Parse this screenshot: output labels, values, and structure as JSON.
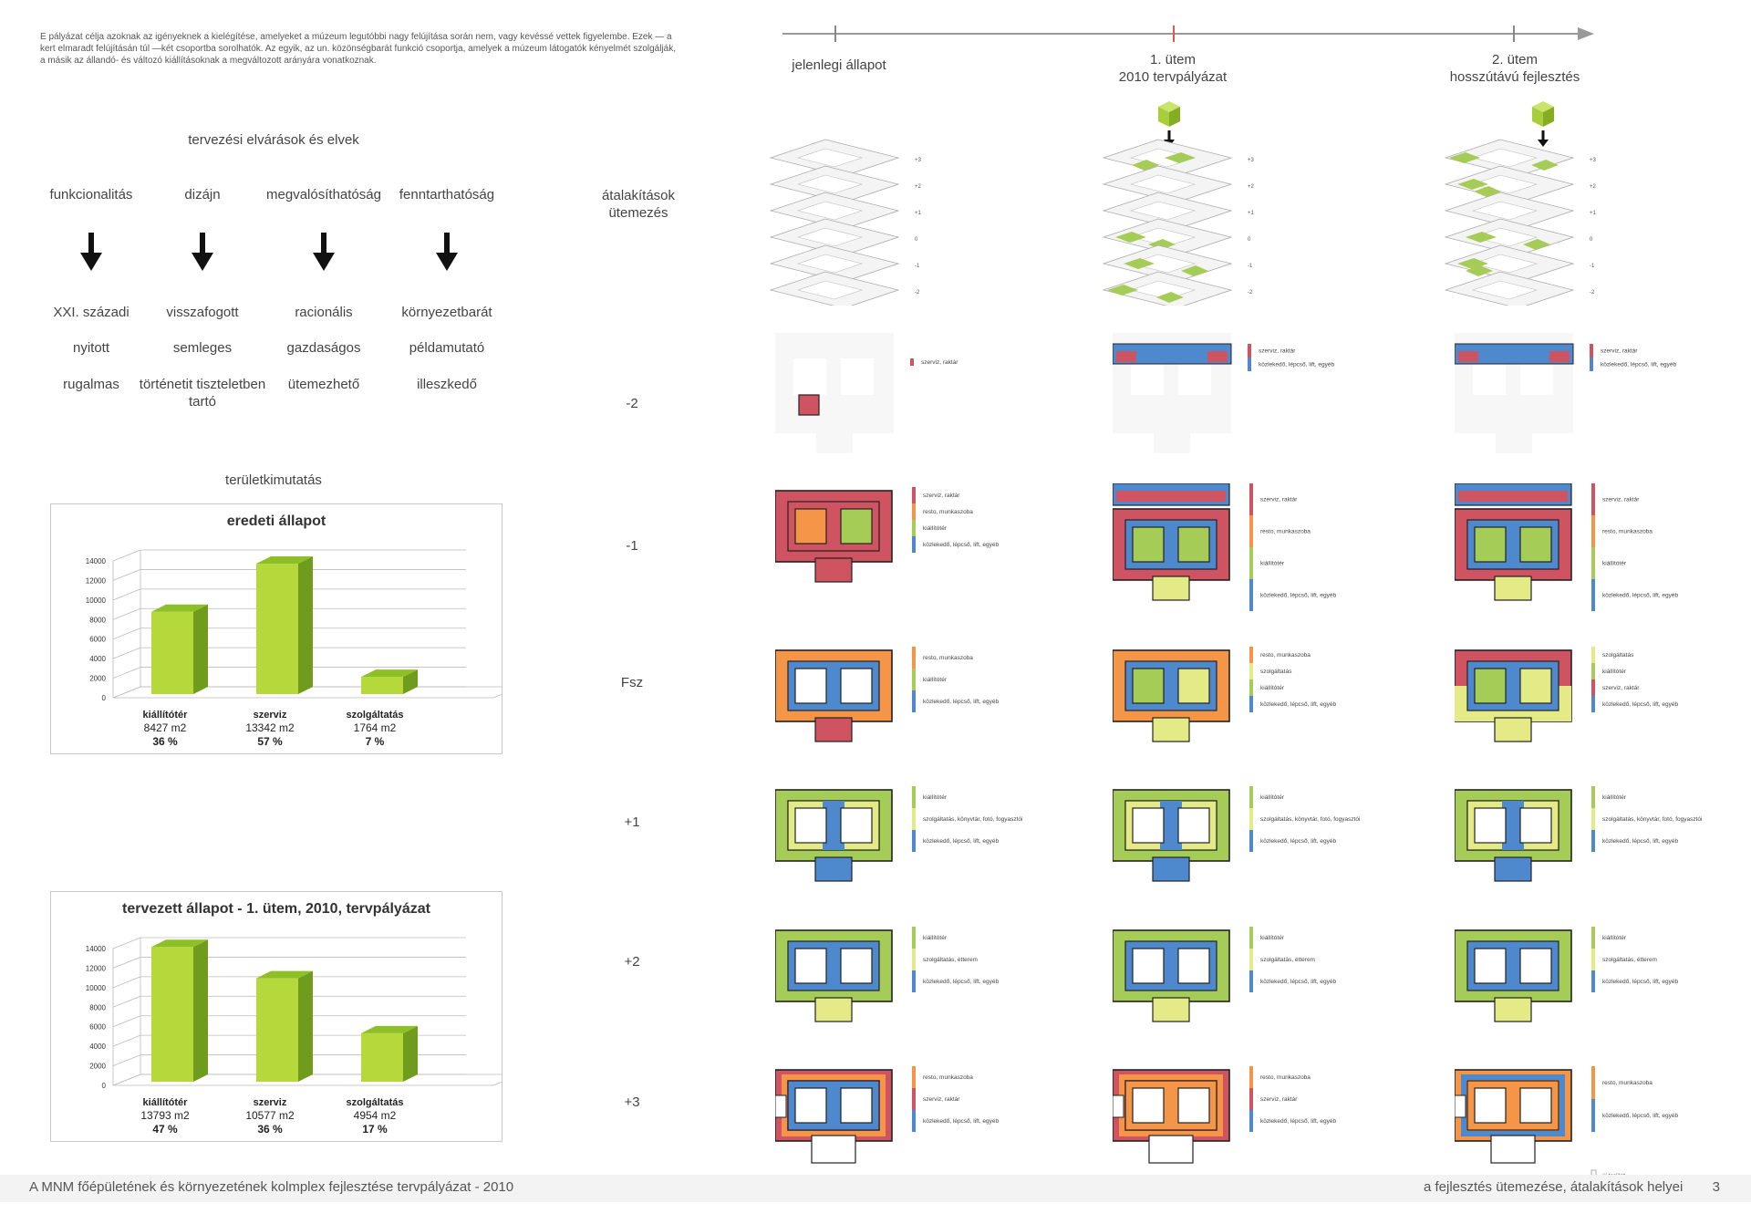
{
  "intro": "E pályázat célja azoknak az igényeknek a kielégítése, amelyeket a  múzeum legutóbbi nagy felújítása során nem, vagy kevéssé vettek figyelembe. Ezek — a kert elmaradt felújításán túl —két csoportba sorolhatók. Az egyik, az un. közönségbarát funkció csoportja, amelyek a múzeum látogatók kényelmét szolgálják, a másik az állandó- és változó kiállításoknak a megváltozott arányára vonatkoznak.",
  "principles": {
    "title": "tervezési elvárások és elvek",
    "columns": [
      {
        "label": "funkcionalitás",
        "values": [
          "XXI. századi",
          "nyitott",
          "rugalmas"
        ]
      },
      {
        "label": "dizájn",
        "values": [
          "visszafogott",
          "semleges",
          "történetit tiszteletben tartó"
        ]
      },
      {
        "label": "megvalósíthatóság",
        "values": [
          "racionális",
          "gazdaságos",
          "ütemezhető"
        ]
      },
      {
        "label": "fenntarthatóság",
        "values": [
          "környezetbarát",
          "példamutató",
          "illeszkedő"
        ]
      }
    ]
  },
  "area_title": "területkimutatás",
  "chart_data": [
    {
      "type": "bar",
      "title": "eredeti állapot",
      "categories": [
        "kiállítótér",
        "szerviz",
        "szolgáltatás"
      ],
      "values": [
        8427,
        13342,
        1764
      ],
      "value_labels": [
        "8427 m2",
        "13342 m2",
        "1764 m2"
      ],
      "percent_labels": [
        "36 %",
        "57 %",
        "7 %"
      ],
      "yticks": [
        0,
        2000,
        4000,
        6000,
        8000,
        10000,
        12000,
        14000
      ],
      "ylim": [
        0,
        14000
      ],
      "colors": {
        "front": "#b5d93b",
        "side": "#6f9c1c",
        "top": "#8fbf27"
      },
      "grid": true
    },
    {
      "type": "bar",
      "title": "tervezett állapot  - 1. ütem, 2010, tervpályázat",
      "categories": [
        "kiállítótér",
        "szerviz",
        "szolgáltatás"
      ],
      "values": [
        13793,
        10577,
        4954
      ],
      "value_labels": [
        "13793 m2",
        "10577 m2",
        "4954 m2"
      ],
      "percent_labels": [
        "47 %",
        "36 %",
        "17 %"
      ],
      "yticks": [
        0,
        2000,
        4000,
        6000,
        8000,
        10000,
        12000,
        14000
      ],
      "ylim": [
        0,
        14000
      ],
      "colors": {
        "front": "#b5d93b",
        "side": "#6f9c1c",
        "top": "#8fbf27"
      },
      "grid": true
    }
  ],
  "schedule_label": "átalakítások ütemezés",
  "timeline": {
    "stages": [
      {
        "line1": "jelenlegi állapot",
        "line2": ""
      },
      {
        "line1": "1. ütem",
        "line2": "2010 tervpályázat"
      },
      {
        "line1": "2. ütem",
        "line2": "hosszútávú fejlesztés"
      }
    ]
  },
  "iso_levels": [
    "+3",
    "+2",
    "+1",
    "0",
    "-1",
    "-2"
  ],
  "floors": [
    "-2",
    "-1",
    "Fsz",
    "+1",
    "+2",
    "+3"
  ],
  "legend_items": {
    "szerviz": "szerviz, raktár",
    "kozlekedo": "közlekedő, lépcső, lift, egyéb",
    "resto": "resto, munkaszoba",
    "kiallitoter": "kiállítótér",
    "szolgaltatas": "szolgáltatás",
    "szolg_konyv": "szolgáltatás, könyvtár, fotó, fogyasztói",
    "szolg_etterem": "szolgáltatás, étterem",
    "kozlekedo2": "közlekedő, lépcső, lift, egyéb",
    "uj_terulet": "új terület"
  },
  "colors": {
    "red": "#cf5360",
    "blue": "#4f89cd",
    "orange": "#f59548",
    "green": "#a6cc58",
    "lightgreen": "#e4ea86",
    "gray": "#ececec",
    "cube": "#a7cf3b"
  },
  "footer": {
    "left": "A MNM főépületének és környezetének kolmplex fejlesztése tervpályázat - 2010",
    "right": "a fejlesztés ütemezése, átalakítások helyei",
    "page": "3"
  }
}
